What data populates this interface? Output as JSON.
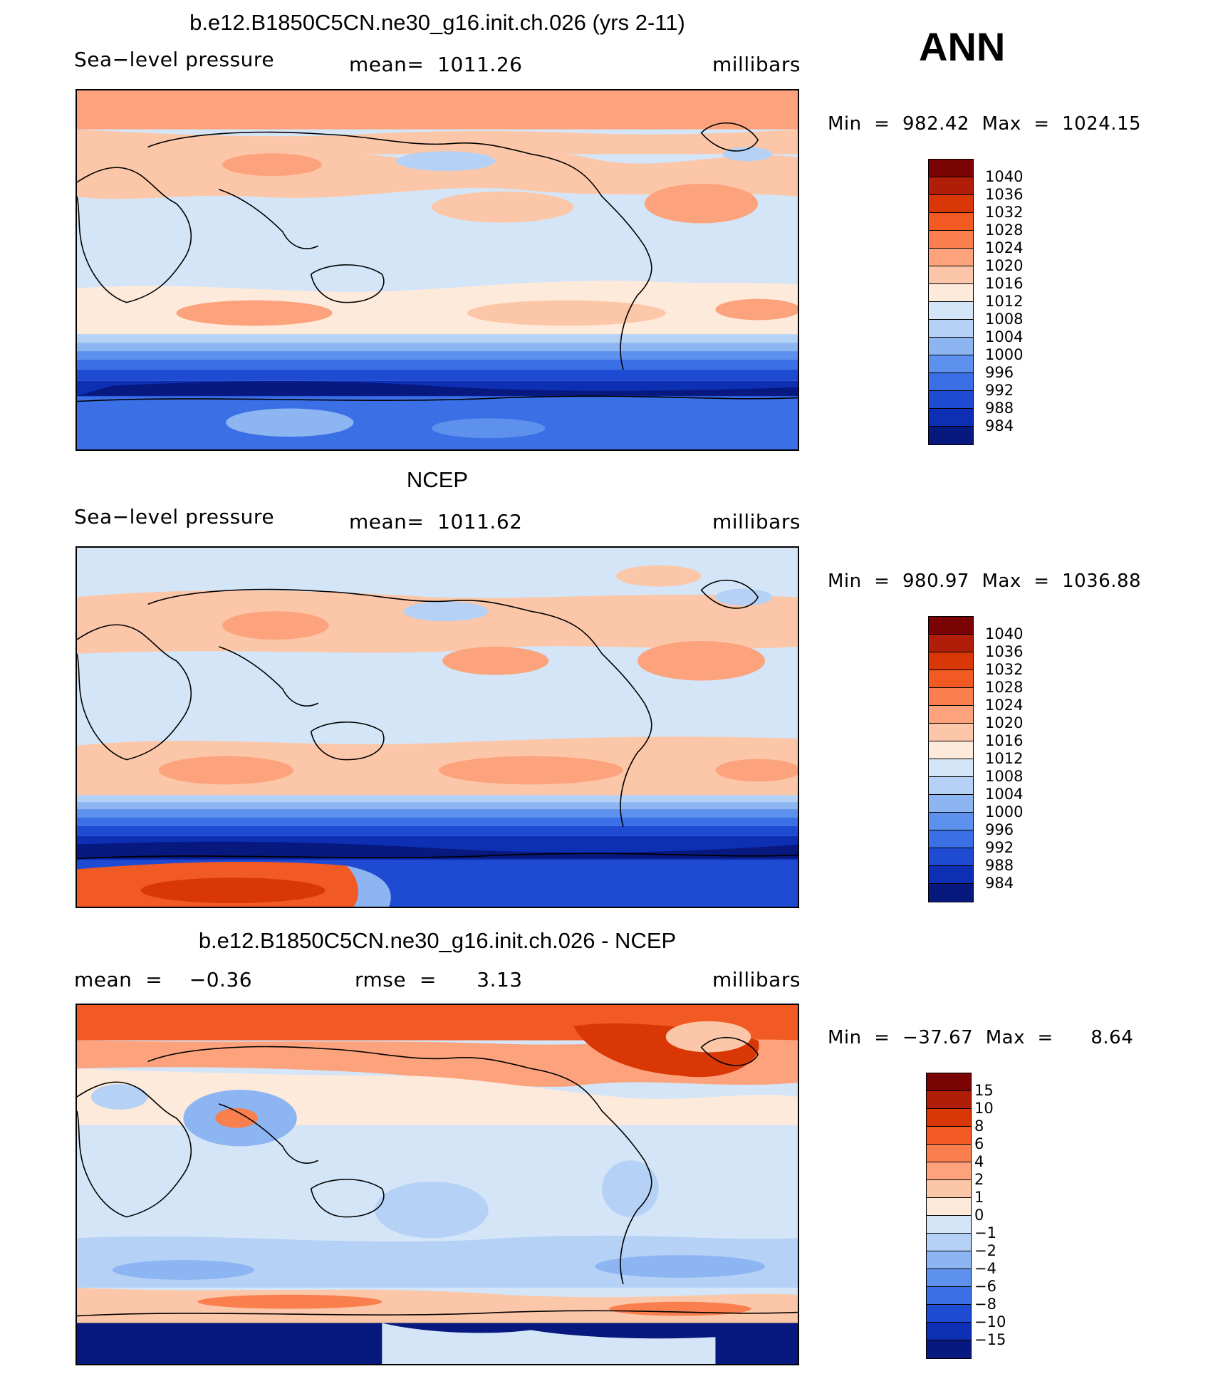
{
  "season": "ANN",
  "panels": [
    {
      "title": "b.e12.B1850C5CN.ne30_g16.init.ch.026 (yrs 2-11)",
      "left_label": "Sea−level pressure",
      "center_label": "mean=  1011.26",
      "right_label": "millibars",
      "minmax": "Min  =  982.42  Max  =  1024.15",
      "colorbar_labels": [
        "1040",
        "1036",
        "1032",
        "1028",
        "1024",
        "1020",
        "1016",
        "1012",
        "1008",
        "1004",
        "1000",
        "996",
        "992",
        "988",
        "984"
      ]
    },
    {
      "title": "NCEP",
      "left_label": "Sea−level pressure",
      "center_label": "mean=  1011.62",
      "right_label": "millibars",
      "minmax": "Min  =  980.97  Max  =  1036.88",
      "colorbar_labels": [
        "1040",
        "1036",
        "1032",
        "1028",
        "1024",
        "1020",
        "1016",
        "1012",
        "1008",
        "1004",
        "1000",
        "996",
        "992",
        "988",
        "984"
      ]
    },
    {
      "title": "b.e12.B1850C5CN.ne30_g16.init.ch.026 - NCEP",
      "left_label": "mean  =    −0.36",
      "center_label": "rmse  =      3.13",
      "right_label": "millibars",
      "minmax": "Min  =  −37.67  Max  =      8.64",
      "colorbar_labels": [
        "15",
        "10",
        "8",
        "6",
        "4",
        "2",
        "1",
        "0",
        "−1",
        "−2",
        "−4",
        "−6",
        "−8",
        "−10",
        "−15"
      ]
    }
  ],
  "colors": {
    "scale": [
      "#7a0403",
      "#b01e0a",
      "#d93806",
      "#f25a24",
      "#f9804e",
      "#fca27c",
      "#fcc7a8",
      "#fdeadb",
      "#d4e5f7",
      "#b5d1f6",
      "#8db5f2",
      "#5d91ed",
      "#3b6fe6",
      "#1f4bd3",
      "#0d2fb4",
      "#07187e"
    ]
  }
}
